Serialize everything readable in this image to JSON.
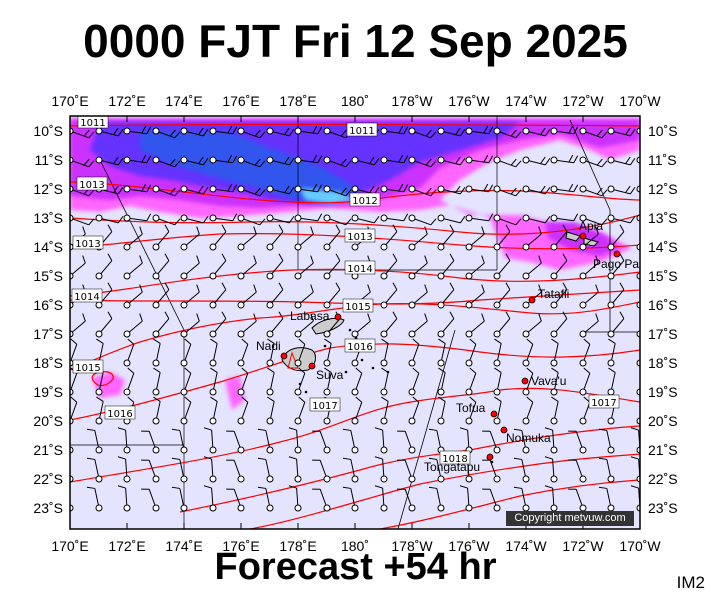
{
  "title": "0000 FJT Fri 12 Sep 2025",
  "forecast_label": "Forecast +54 hr",
  "image_code": "IM2",
  "copyright": "Copyright metvuw.com",
  "axes": {
    "lon_labels": [
      "170˚E",
      "172˚E",
      "174˚E",
      "176˚E",
      "178˚E",
      "180˚",
      "178˚W",
      "176˚W",
      "174˚W",
      "172˚W",
      "170˚W"
    ],
    "lat_labels": [
      "10˚S",
      "11˚S",
      "12˚S",
      "13˚S",
      "14˚S",
      "15˚S",
      "16˚S",
      "17˚S",
      "18˚S",
      "19˚S",
      "20˚S",
      "21˚S",
      "22˚S",
      "23˚S"
    ]
  },
  "isobars": [
    {
      "label": "1011",
      "lat": 10.0
    },
    {
      "label": "1011",
      "lat": 10.0
    },
    {
      "label": "1012",
      "lat": 12.4
    },
    {
      "label": "1013",
      "lat": 13.7
    },
    {
      "label": "1013",
      "lat": 12.0
    },
    {
      "label": "1013",
      "lat": 14.0
    },
    {
      "label": "1014",
      "lat": 14.9
    },
    {
      "label": "1014",
      "lat": 15.7
    },
    {
      "label": "1015",
      "lat": 16.0
    },
    {
      "label": "1015",
      "lat": 18.2
    },
    {
      "label": "1016",
      "lat": 16.9
    },
    {
      "label": "1016",
      "lat": 19.7
    },
    {
      "label": "1017",
      "lat": 19.4
    },
    {
      "label": "1017",
      "lat": 19.2
    },
    {
      "label": "1018",
      "lat": 20.6
    }
  ],
  "places": [
    {
      "name": "Apia",
      "lon": -171.8,
      "lat": 13.8
    },
    {
      "name": "Pago Pago",
      "lon": -170.7,
      "lat": 14.3
    },
    {
      "name": "Tatafii",
      "lon": -173.8,
      "lat": 15.9
    },
    {
      "name": "Labasa",
      "lon": 179.4,
      "lat": 16.4
    },
    {
      "name": "Nadi",
      "lon": 177.4,
      "lat": 17.8
    },
    {
      "name": "Suva",
      "lon": 178.4,
      "lat": 18.1
    },
    {
      "name": "Vava'u",
      "lon": -174.0,
      "lat": 18.65
    },
    {
      "name": "Tofua",
      "lon": -175.1,
      "lat": 19.7
    },
    {
      "name": "Nomuka",
      "lon": -174.8,
      "lat": 20.25
    },
    {
      "name": "Tongatapu",
      "lon": -175.2,
      "lat": 21.2
    }
  ],
  "colors": {
    "background": "#e4e4ff",
    "isobar": "#ff0000",
    "rain_light": "#ff66ff",
    "rain_moderate": "#cc33ff",
    "rain_heavy": "#6633ff",
    "rain_very_heavy": "#3355ee",
    "land": "#cccccc",
    "city": "#ff0000"
  }
}
